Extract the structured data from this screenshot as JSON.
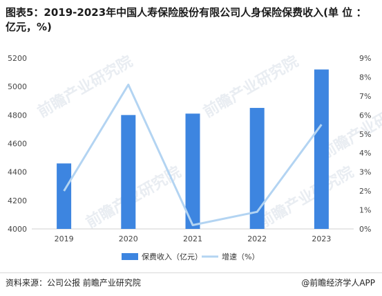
{
  "title": "图表5：2019-2023年中国人寿保险股份有限公司人身保险保费收入(单 位 ：亿元，%)",
  "footer": {
    "source": "资料来源：公司公报 前瞻产业研究院",
    "brand": "@前瞻经济学人APP"
  },
  "watermark": "前瞻产业研究院",
  "colors": {
    "bar": "#3d85e0",
    "line": "#b3d4f2"
  },
  "chart_data": {
    "type": "bar",
    "categories": [
      "2019",
      "2020",
      "2021",
      "2022",
      "2023"
    ],
    "series": [
      {
        "name": "保费收入（亿元）",
        "type": "bar",
        "axis": "left",
        "values": [
          4460,
          4800,
          4810,
          4850,
          5120
        ]
      },
      {
        "name": "增速（%）",
        "type": "line",
        "axis": "right",
        "values": [
          2.0,
          7.6,
          0.2,
          0.9,
          5.5
        ]
      }
    ],
    "y_left": {
      "min": 4000,
      "max": 5200,
      "ticks": [
        "4000",
        "4200",
        "4400",
        "4600",
        "4800",
        "5000",
        "5200"
      ]
    },
    "y_right": {
      "min": 0,
      "max": 9,
      "ticks": [
        "0%",
        "1%",
        "2%",
        "3%",
        "4%",
        "5%",
        "6%",
        "7%",
        "8%",
        "9%"
      ]
    },
    "legend_position": "bottom-center",
    "grid": false
  }
}
